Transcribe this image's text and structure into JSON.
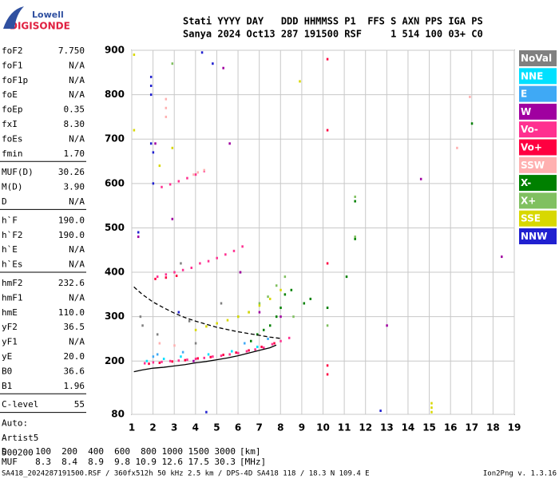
{
  "logo": {
    "top": "Lowell",
    "bottom": "DIGISONDE"
  },
  "header": [
    "Stati YYYY DAY   DDD HHMMSS P1  FFS S AXN PPS IGA PS",
    "Sanya 2024 Oct13 287 191500 RSF     1 514 100 03+ C0"
  ],
  "params": [
    [
      [
        "foF2",
        "7.750"
      ],
      [
        "foF1",
        "N/A"
      ],
      [
        "foF1p",
        "N/A"
      ],
      [
        "foE",
        "N/A"
      ],
      [
        "foEp",
        "0.35"
      ],
      [
        "fxI",
        "8.30"
      ],
      [
        "foEs",
        "N/A"
      ],
      [
        "fmin",
        "1.70"
      ]
    ],
    [
      [
        "MUF(D)",
        "30.26"
      ],
      [
        "M(D)",
        "3.90"
      ],
      [
        "D",
        "N/A"
      ]
    ],
    [
      [
        "h`F",
        "190.0"
      ],
      [
        "h`F2",
        "190.0"
      ],
      [
        "h`E",
        "N/A"
      ],
      [
        "h`Es",
        "N/A"
      ]
    ],
    [
      [
        "hmF2",
        "232.6"
      ],
      [
        "hmF1",
        "N/A"
      ],
      [
        "hmE",
        "110.0"
      ],
      [
        "yF2",
        "36.5"
      ],
      [
        "yF1",
        "N/A"
      ],
      [
        "yE",
        "20.0"
      ],
      [
        "B0",
        "36.6"
      ],
      [
        "B1",
        "1.96"
      ]
    ],
    [
      [
        "C-level",
        "55"
      ]
    ],
    [
      [
        "Auto:"
      ],
      [
        "Artist5"
      ],
      [
        "500200"
      ]
    ]
  ],
  "chart_data": {
    "type": "scatter",
    "xlim": [
      1,
      19
    ],
    "xticks": [
      1,
      2,
      3,
      4,
      5,
      6,
      7,
      8,
      9,
      10,
      11,
      12,
      13,
      14,
      15,
      16,
      17,
      18,
      19
    ],
    "ylim": [
      80,
      900
    ],
    "yticks": [
      80,
      200,
      300,
      400,
      500,
      600,
      700,
      800,
      900
    ],
    "grid": true,
    "series": [
      {
        "name": "NoVal",
        "color": "#808080",
        "x": [
          1.4,
          1.5,
          2.2,
          3.3,
          3.7,
          4.0,
          5.2,
          6.1
        ],
        "values": [
          300,
          280,
          260,
          420,
          290,
          240,
          330,
          400
        ]
      },
      {
        "name": "NNE",
        "color": "#00e0ff",
        "x": [
          1.7,
          2.5,
          3.3,
          4.6,
          5.7,
          6.9
        ],
        "values": [
          200,
          205,
          210,
          215,
          222,
          232
        ]
      },
      {
        "name": "E",
        "color": "#3fa9f5",
        "x": [
          2.0,
          2.2,
          3.4,
          6.3,
          7.4
        ],
        "values": [
          210,
          215,
          220,
          240,
          250
        ]
      },
      {
        "name": "W",
        "color": "#a000a0",
        "x": [
          1.3,
          2.1,
          2.9,
          3.9,
          5.3,
          5.6,
          6.1,
          7.0,
          8.0,
          13.0,
          14.6,
          18.4
        ],
        "values": [
          480,
          690,
          520,
          200,
          860,
          690,
          400,
          310,
          300,
          280,
          610,
          435
        ]
      },
      {
        "name": "Vo-",
        "color": "#ff3090",
        "x": [
          1.6,
          2.0,
          2.4,
          2.8,
          3.2,
          3.6,
          4.0,
          4.4,
          4.8,
          5.2,
          5.6,
          6.0,
          6.4,
          6.8,
          7.2,
          7.6,
          8.0,
          8.4,
          2.2,
          2.6,
          3.0,
          3.4,
          3.8,
          4.2,
          4.6,
          5.0,
          5.4,
          5.8,
          6.2,
          2.4,
          2.8,
          3.2,
          3.6,
          4.0,
          4.4
        ],
        "values": [
          195,
          197,
          198,
          200,
          201,
          203,
          205,
          207,
          210,
          212,
          215,
          218,
          222,
          226,
          230,
          238,
          245,
          252,
          390,
          395,
          400,
          405,
          410,
          420,
          425,
          432,
          440,
          448,
          458,
          592,
          598,
          605,
          612,
          620,
          628
        ]
      },
      {
        "name": "Vo+",
        "color": "#ff0040",
        "x": [
          1.8,
          2.3,
          2.9,
          3.5,
          4.1,
          4.7,
          5.3,
          5.9,
          6.5,
          7.1,
          7.7,
          10.2,
          10.2,
          10.2,
          10.2,
          10.2,
          2.1,
          2.6,
          3.1
        ],
        "values": [
          194,
          196,
          199,
          202,
          206,
          209,
          214,
          219,
          224,
          232,
          240,
          720,
          880,
          190,
          170,
          420,
          385,
          388,
          392
        ]
      },
      {
        "name": "SSW",
        "color": "#ffb0b0",
        "x": [
          2.6,
          2.6,
          2.6,
          3.9,
          4.1,
          4.4,
          16.3,
          16.9,
          2.3,
          3.0
        ],
        "values": [
          790,
          770,
          750,
          620,
          625,
          630,
          680,
          795,
          240,
          235
        ]
      },
      {
        "name": "X-",
        "color": "#008000",
        "x": [
          6.6,
          6.9,
          7.2,
          7.5,
          7.8,
          8.0,
          8.2,
          8.5,
          10.2,
          11.1,
          11.5,
          11.5,
          17.0,
          9.4,
          9.1
        ],
        "values": [
          245,
          260,
          270,
          280,
          300,
          320,
          350,
          360,
          320,
          390,
          475,
          560,
          735,
          340,
          330
        ]
      },
      {
        "name": "X+",
        "color": "#80c060",
        "x": [
          6.0,
          6.5,
          7.0,
          7.4,
          7.8,
          8.2,
          8.6,
          10.2,
          11.5,
          11.5,
          2.9
        ],
        "values": [
          300,
          310,
          330,
          345,
          370,
          390,
          300,
          280,
          480,
          570,
          870
        ]
      },
      {
        "name": "SSE",
        "color": "#d8d800",
        "x": [
          1.1,
          1.1,
          4.0,
          4.5,
          5.0,
          5.5,
          6.0,
          6.5,
          7.0,
          7.5,
          8.0,
          8.9,
          15.1,
          15.1,
          15.1,
          2.3,
          2.9
        ],
        "values": [
          890,
          720,
          270,
          278,
          285,
          292,
          300,
          310,
          325,
          340,
          360,
          830,
          85,
          95,
          105,
          640,
          680
        ]
      },
      {
        "name": "NNW",
        "color": "#2020d0",
        "x": [
          1.3,
          1.9,
          1.9,
          1.9,
          1.9,
          2.0,
          2.0,
          3.2,
          4.3,
          4.5,
          4.8,
          12.7
        ],
        "values": [
          490,
          840,
          820,
          800,
          690,
          670,
          600,
          310,
          895,
          85,
          870,
          88
        ]
      }
    ],
    "traces": [
      {
        "style": "solid",
        "x": [
          1.1,
          1.5,
          2.0,
          2.5,
          3.0,
          3.5,
          4.0,
          4.5,
          5.0,
          5.5,
          6.0,
          6.5,
          7.0,
          7.5,
          7.8
        ],
        "values": [
          176,
          180,
          184,
          186,
          189,
          192,
          196,
          199,
          203,
          207,
          212,
          218,
          224,
          230,
          236
        ]
      },
      {
        "style": "dashed",
        "x": [
          1.1,
          1.5,
          2.0,
          2.5,
          3.0,
          3.5,
          4.0,
          4.5,
          5.0,
          5.5,
          6.0,
          6.5,
          7.0,
          7.5,
          8.0
        ],
        "values": [
          367,
          350,
          333,
          320,
          308,
          298,
          290,
          283,
          276,
          271,
          266,
          262,
          258,
          254,
          251
        ]
      }
    ]
  },
  "footer": {
    "rows": [
      {
        "label": "D",
        "values": [
          100,
          200,
          400,
          600,
          800,
          1000,
          1500,
          3000
        ],
        "unit": "[km]"
      },
      {
        "label": "MUF",
        "values": [
          8.3,
          8.4,
          8.9,
          9.8,
          10.9,
          12.6,
          17.5,
          30.3
        ],
        "unit": "[MHz]"
      }
    ],
    "status": "SA418_2024287191500.RSF / 360fx512h 50 kHz 2.5 km / DPS-4D SA418 118 / 18.3 N 109.4 E",
    "version": "Ion2Png v. 1.3.16"
  }
}
